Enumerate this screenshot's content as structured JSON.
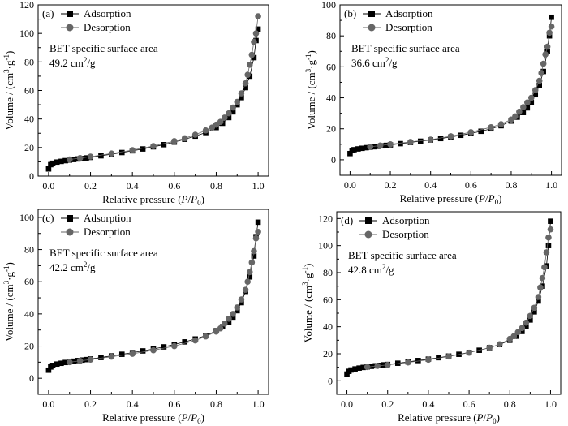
{
  "chart_data": [
    {
      "type": "scatter",
      "panel_label": "(a)",
      "xlabel_text": "Relative pressure (",
      "xlabel_var": "P",
      "xlabel_sep": "/",
      "xlabel_var2": "P",
      "xlabel_sub": "0",
      "xlabel_close": ")",
      "ylabel_text": "Volume / (cm",
      "ylabel_sup1": "3",
      "ylabel_mid": "·g",
      "ylabel_sup2": "-1",
      "ylabel_close": ")",
      "annotation_title": "BET specific surface area",
      "annotation_value": "49.2 cm",
      "annotation_sup": "2",
      "annotation_unit": "/g",
      "xlim": [
        -0.05,
        1.05
      ],
      "ylim": [
        0,
        120
      ],
      "xticks": [
        "0.0",
        "0.2",
        "0.4",
        "0.6",
        "0.8",
        "1.0"
      ],
      "yticks": [
        "0",
        "20",
        "40",
        "60",
        "80",
        "100",
        "120"
      ],
      "legend_position": "top-left",
      "series": [
        {
          "name": "Adsorption",
          "marker": "square",
          "color": "#000000",
          "x": [
            0.0,
            0.01,
            0.02,
            0.04,
            0.06,
            0.08,
            0.1,
            0.12,
            0.14,
            0.16,
            0.18,
            0.2,
            0.25,
            0.3,
            0.35,
            0.4,
            0.45,
            0.5,
            0.55,
            0.6,
            0.65,
            0.7,
            0.75,
            0.8,
            0.83,
            0.86,
            0.88,
            0.9,
            0.92,
            0.94,
            0.96,
            0.98,
            0.99,
            1.0
          ],
          "y": [
            5,
            8,
            9,
            9.8,
            10.3,
            10.8,
            11.2,
            11.6,
            12,
            12.3,
            12.7,
            13.1,
            14.2,
            15.3,
            16.5,
            17.7,
            19,
            20.5,
            22,
            23.8,
            25.8,
            28,
            30.5,
            34,
            37,
            41,
            45,
            50,
            55,
            62,
            70,
            83,
            95,
            103
          ]
        },
        {
          "name": "Desorption",
          "marker": "circle",
          "color": "#666666",
          "x": [
            1.0,
            0.99,
            0.98,
            0.97,
            0.96,
            0.95,
            0.94,
            0.92,
            0.9,
            0.88,
            0.86,
            0.84,
            0.82,
            0.8,
            0.78,
            0.75,
            0.7,
            0.65,
            0.6,
            0.5,
            0.4,
            0.3,
            0.2,
            0.15,
            0.1
          ],
          "y": [
            112,
            100,
            94,
            85,
            78,
            71,
            65,
            58,
            52,
            48,
            44,
            41,
            38,
            36,
            34,
            32,
            29,
            26.5,
            24.5,
            21,
            18.2,
            15.8,
            13.6,
            12.6,
            11.6
          ]
        }
      ]
    },
    {
      "type": "scatter",
      "panel_label": "(b)",
      "xlabel_text": "Relative pressure (",
      "xlabel_var": "P",
      "xlabel_sep": "/",
      "xlabel_var2": "P",
      "xlabel_sub": "0",
      "xlabel_close": ")",
      "ylabel_text": "Volume / (cm",
      "ylabel_sup1": "3",
      "ylabel_mid": "·g",
      "ylabel_sup2": "-1",
      "ylabel_close": ")",
      "annotation_title": "BET specific surface area",
      "annotation_value": "36.6 cm",
      "annotation_sup": "2",
      "annotation_unit": "/g",
      "xlim": [
        -0.05,
        1.05
      ],
      "ylim": [
        -10,
        100
      ],
      "xticks": [
        "0.0",
        "0.2",
        "0.4",
        "0.6",
        "0.8",
        "1.0"
      ],
      "yticks": [
        "0",
        "20",
        "40",
        "60",
        "80",
        "100"
      ],
      "legend_position": "top-left",
      "series": [
        {
          "name": "Adsorption",
          "marker": "square",
          "color": "#000000",
          "x": [
            0.0,
            0.01,
            0.02,
            0.04,
            0.06,
            0.08,
            0.1,
            0.12,
            0.14,
            0.16,
            0.18,
            0.2,
            0.25,
            0.3,
            0.35,
            0.4,
            0.45,
            0.5,
            0.55,
            0.6,
            0.65,
            0.7,
            0.75,
            0.8,
            0.83,
            0.86,
            0.88,
            0.9,
            0.92,
            0.94,
            0.96,
            0.98,
            0.99,
            1.0
          ],
          "y": [
            4,
            6,
            6.5,
            7,
            7.4,
            7.8,
            8.1,
            8.4,
            8.7,
            9,
            9.3,
            9.6,
            10.4,
            11.2,
            12,
            12.8,
            13.7,
            14.7,
            15.8,
            17,
            18.4,
            20,
            22,
            25,
            27.5,
            30.5,
            33.5,
            37,
            42,
            48,
            57,
            70,
            80,
            92
          ]
        },
        {
          "name": "Desorption",
          "marker": "circle",
          "color": "#666666",
          "x": [
            1.0,
            0.99,
            0.98,
            0.97,
            0.96,
            0.95,
            0.94,
            0.92,
            0.9,
            0.88,
            0.86,
            0.84,
            0.82,
            0.8,
            0.75,
            0.7,
            0.6,
            0.5,
            0.4,
            0.3,
            0.2,
            0.15,
            0.1
          ],
          "y": [
            86,
            82,
            73,
            68,
            62,
            56,
            51,
            45,
            40,
            37,
            34,
            31,
            28,
            26,
            23,
            21,
            17.8,
            15.2,
            13,
            11.5,
            10,
            9.2,
            8.4
          ]
        }
      ]
    },
    {
      "type": "scatter",
      "panel_label": "(c)",
      "xlabel_text": "Relative pressure (",
      "xlabel_var": "P",
      "xlabel_sep": "/",
      "xlabel_var2": "P",
      "xlabel_sub": "0",
      "xlabel_close": ")",
      "ylabel_text": "Volume / (cm",
      "ylabel_sup1": "3",
      "ylabel_mid": "·g",
      "ylabel_sup2": "-1",
      "ylabel_close": ")",
      "annotation_title": "BET specific surface area",
      "annotation_value": "42.2 cm",
      "annotation_sup": "2",
      "annotation_unit": "/g",
      "xlim": [
        -0.05,
        1.05
      ],
      "ylim": [
        -10,
        105
      ],
      "xticks": [
        "0.0",
        "0.2",
        "0.4",
        "0.6",
        "0.8",
        "1.0"
      ],
      "yticks": [
        "0",
        "20",
        "40",
        "60",
        "80",
        "100"
      ],
      "legend_position": "top-left",
      "series": [
        {
          "name": "Adsorption",
          "marker": "square",
          "color": "#000000",
          "x": [
            0.0,
            0.01,
            0.02,
            0.04,
            0.06,
            0.08,
            0.1,
            0.12,
            0.14,
            0.16,
            0.18,
            0.2,
            0.25,
            0.3,
            0.35,
            0.4,
            0.45,
            0.5,
            0.55,
            0.6,
            0.65,
            0.7,
            0.75,
            0.8,
            0.83,
            0.86,
            0.88,
            0.9,
            0.92,
            0.94,
            0.96,
            0.98,
            0.99,
            1.0
          ],
          "y": [
            5,
            7,
            8,
            8.8,
            9.3,
            9.8,
            10.2,
            10.6,
            11,
            11.3,
            11.6,
            12,
            12.9,
            13.9,
            14.9,
            15.9,
            17,
            18.2,
            19.5,
            21,
            22.6,
            24.4,
            26.5,
            29.5,
            32,
            35,
            38,
            42,
            47,
            54,
            63,
            76,
            88,
            97
          ]
        },
        {
          "name": "Desorption",
          "marker": "circle",
          "color": "#666666",
          "x": [
            1.0,
            0.99,
            0.98,
            0.97,
            0.96,
            0.95,
            0.94,
            0.92,
            0.9,
            0.88,
            0.86,
            0.84,
            0.82,
            0.8,
            0.75,
            0.7,
            0.6,
            0.5,
            0.4,
            0.3,
            0.2,
            0.15,
            0.1
          ],
          "y": [
            91,
            87,
            79,
            72,
            66,
            60,
            55,
            49,
            44,
            40,
            37,
            34,
            31,
            29,
            26,
            23.5,
            20,
            17.4,
            15.2,
            13.4,
            11.6,
            10.8,
            10
          ]
        }
      ]
    },
    {
      "type": "scatter",
      "panel_label": "(d)",
      "xlabel_text": "Relative pressure (",
      "xlabel_var": "P",
      "xlabel_sep": "/",
      "xlabel_var2": "P",
      "xlabel_sub": "0",
      "xlabel_close": ")",
      "ylabel_text": "Volume / (cm",
      "ylabel_sup1": "3",
      "ylabel_mid": "·g",
      "ylabel_sup2": "-1",
      "ylabel_close": ")",
      "annotation_title": "BET specific surface area",
      "annotation_value": "42.8 cm",
      "annotation_sup": "2",
      "annotation_unit": "/g",
      "xlim": [
        -0.05,
        1.05
      ],
      "ylim": [
        -10,
        125
      ],
      "xticks": [
        "0.0",
        "0.2",
        "0.4",
        "0.6",
        "0.8",
        "1.0"
      ],
      "yticks": [
        "0",
        "20",
        "40",
        "60",
        "80",
        "100",
        "120"
      ],
      "legend_position": "top-left",
      "series": [
        {
          "name": "Adsorption",
          "marker": "square",
          "color": "#000000",
          "x": [
            0.0,
            0.01,
            0.02,
            0.04,
            0.06,
            0.08,
            0.1,
            0.12,
            0.14,
            0.16,
            0.18,
            0.2,
            0.25,
            0.3,
            0.35,
            0.4,
            0.45,
            0.5,
            0.55,
            0.6,
            0.65,
            0.7,
            0.75,
            0.8,
            0.83,
            0.86,
            0.88,
            0.9,
            0.92,
            0.94,
            0.96,
            0.98,
            0.99,
            1.0
          ],
          "y": [
            5,
            7,
            8,
            8.8,
            9.4,
            9.9,
            10.3,
            10.7,
            11.1,
            11.4,
            11.8,
            12.1,
            13,
            14,
            15,
            16,
            17.1,
            18.3,
            19.6,
            21,
            22.6,
            24.5,
            26.8,
            30,
            33,
            36.5,
            40,
            45,
            51,
            59,
            70,
            85,
            100,
            118
          ]
        },
        {
          "name": "Desorption",
          "marker": "circle",
          "color": "#666666",
          "x": [
            1.0,
            0.99,
            0.98,
            0.97,
            0.96,
            0.95,
            0.94,
            0.92,
            0.9,
            0.88,
            0.86,
            0.84,
            0.82,
            0.8,
            0.75,
            0.7,
            0.6,
            0.5,
            0.4,
            0.3,
            0.2,
            0.15,
            0.1
          ],
          "y": [
            112,
            106,
            95,
            84,
            76,
            69,
            62,
            54,
            48,
            43,
            39,
            36,
            33,
            31,
            27,
            24.5,
            20.8,
            18,
            15.6,
            13.6,
            11.8,
            11,
            10.2
          ]
        }
      ]
    }
  ]
}
